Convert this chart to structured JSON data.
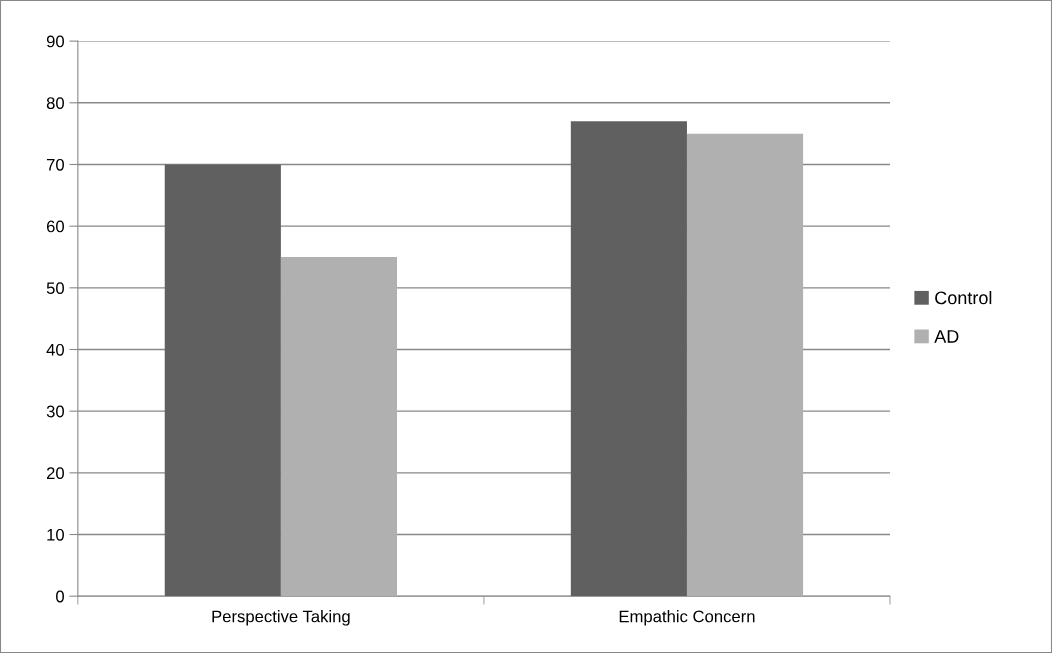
{
  "chart_data": {
    "type": "bar",
    "categories": [
      "Perspective Taking",
      "Empathic Concern"
    ],
    "series": [
      {
        "name": "Control",
        "color": "#606060",
        "values": [
          70,
          77
        ]
      },
      {
        "name": "AD",
        "color": "#b0b0b0",
        "values": [
          55,
          75
        ]
      }
    ],
    "ylim": [
      0,
      90
    ],
    "yticks": [
      0,
      10,
      20,
      30,
      40,
      50,
      60,
      70,
      80,
      90
    ],
    "grid": "y",
    "legend": "right"
  }
}
